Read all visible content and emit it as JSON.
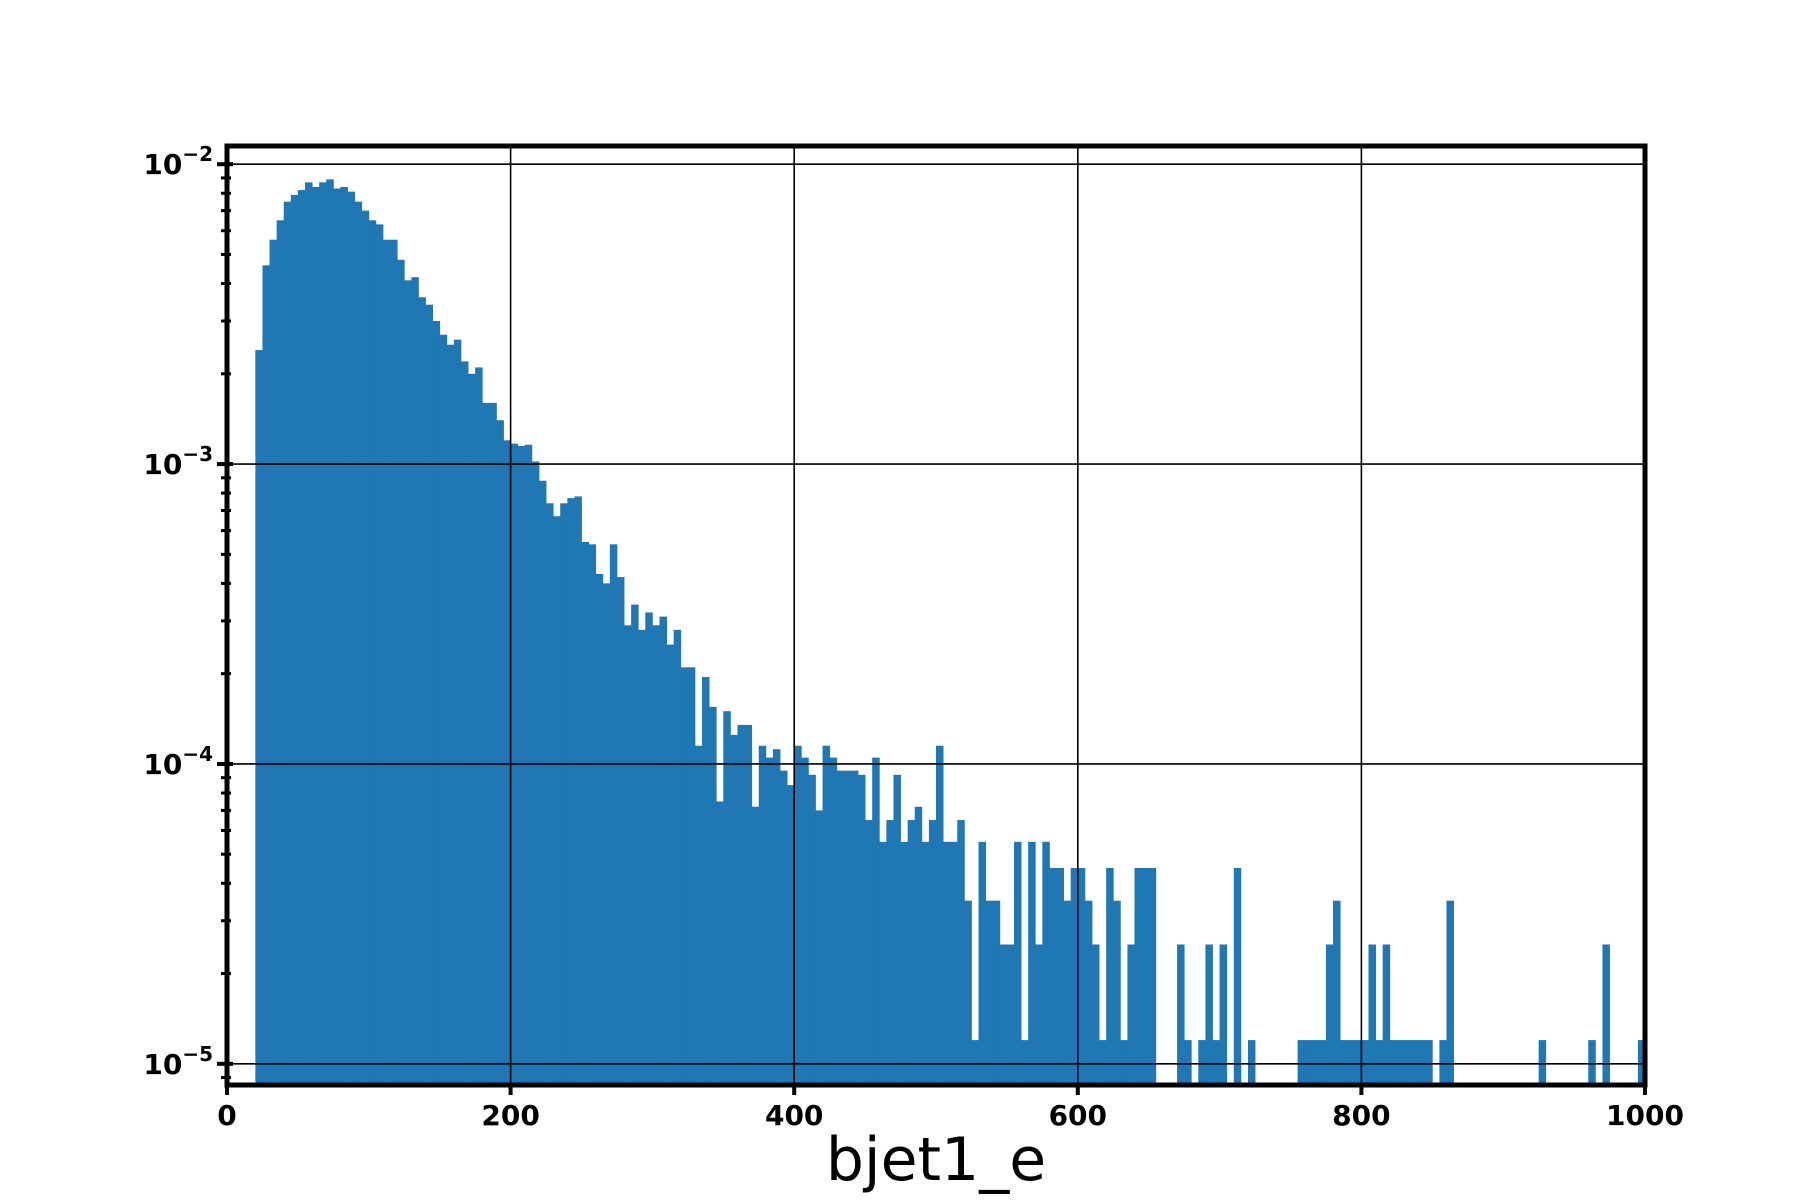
{
  "chart_data": {
    "type": "bar",
    "title": "",
    "xlabel": "bjet1_e",
    "ylabel": "",
    "xlim": [
      0,
      1000
    ],
    "ylim": [
      8.5e-06,
      0.0115
    ],
    "yscale": "log",
    "grid": true,
    "bar_color": "#1f77b4",
    "bin_width": 5,
    "x_ticks": [
      0,
      200,
      400,
      600,
      800,
      1000
    ],
    "x_tick_labels": [
      "0",
      "200",
      "400",
      "600",
      "800",
      "1000"
    ],
    "y_ticks": [
      1e-05,
      0.0001,
      0.001,
      0.01
    ],
    "y_tick_labels": [
      {
        "base": "10",
        "exp": "−5"
      },
      {
        "base": "10",
        "exp": "−4"
      },
      {
        "base": "10",
        "exp": "−3"
      },
      {
        "base": "10",
        "exp": "−2"
      }
    ],
    "series": [
      {
        "x": [
          20,
          25,
          30,
          35,
          40,
          45,
          50,
          55,
          60,
          65,
          70,
          75,
          80,
          85,
          90,
          95,
          100,
          105,
          110,
          115,
          120,
          125,
          130,
          135,
          140,
          145,
          150,
          155,
          160,
          165,
          170,
          175,
          180,
          185,
          190,
          195,
          200,
          205,
          210,
          215,
          220,
          225,
          230,
          235,
          240,
          245,
          250,
          255,
          260,
          265,
          270,
          275,
          280,
          285,
          290,
          295,
          300,
          305,
          310,
          315,
          320,
          325,
          330,
          335,
          340,
          345,
          350,
          355,
          360,
          365,
          370,
          375,
          380,
          385,
          390,
          395,
          400,
          405,
          410,
          415,
          420,
          425,
          430,
          435,
          440,
          445,
          450,
          455,
          460,
          465,
          470,
          475,
          480,
          485,
          490,
          495,
          500,
          505,
          510,
          515,
          520,
          525,
          530,
          535,
          540,
          545,
          550,
          555,
          560,
          565,
          570,
          575,
          580,
          585,
          590,
          595,
          600,
          605,
          610,
          615,
          620,
          625,
          630,
          635,
          640,
          645,
          650,
          670,
          675,
          685,
          690,
          695,
          700,
          710,
          720,
          755,
          760,
          765,
          770,
          775,
          780,
          785,
          790,
          795,
          800,
          805,
          810,
          815,
          820,
          825,
          830,
          835,
          840,
          845,
          855,
          860,
          925,
          960,
          970,
          995
        ],
        "values": [
          0.0024,
          0.0046,
          0.0056,
          0.0065,
          0.0075,
          0.0079,
          0.0082,
          0.0087,
          0.0084,
          0.0087,
          0.0089,
          0.0083,
          0.0084,
          0.0081,
          0.0075,
          0.007,
          0.0065,
          0.0063,
          0.0056,
          0.0056,
          0.0048,
          0.0041,
          0.0042,
          0.0036,
          0.0034,
          0.003,
          0.0027,
          0.0025,
          0.0026,
          0.0022,
          0.002,
          0.0021,
          0.0016,
          0.0016,
          0.0014,
          0.0012,
          0.00117,
          0.00115,
          0.00116,
          0.00102,
          0.00088,
          0.00074,
          0.00067,
          0.00074,
          0.00077,
          0.00078,
          0.00055,
          0.00054,
          0.00043,
          0.0004,
          0.00054,
          0.00042,
          0.00029,
          0.00034,
          0.00028,
          0.00032,
          0.00029,
          0.00031,
          0.00025,
          0.00028,
          0.00021,
          0.00021,
          0.000115,
          0.000195,
          0.000155,
          7.5e-05,
          0.00015,
          0.000125,
          0.000135,
          0.000135,
          7.2e-05,
          0.000115,
          0.000105,
          0.000112,
          9.5e-05,
          8.5e-05,
          0.000115,
          0.000105,
          9.2e-05,
          7e-05,
          0.000115,
          0.000105,
          9.5e-05,
          9.5e-05,
          9.5e-05,
          9.2e-05,
          6.5e-05,
          0.000105,
          5.5e-05,
          6.5e-05,
          9.2e-05,
          5.5e-05,
          6.5e-05,
          7.2e-05,
          5.5e-05,
          6.5e-05,
          0.000115,
          5.5e-05,
          5.5e-05,
          6.5e-05,
          3.5e-05,
          1.2e-05,
          5.5e-05,
          3.5e-05,
          3.5e-05,
          2.5e-05,
          2.5e-05,
          5.5e-05,
          1.2e-05,
          5.5e-05,
          2.5e-05,
          5.5e-05,
          4.5e-05,
          4.5e-05,
          3.5e-05,
          4.5e-05,
          4.5e-05,
          3.5e-05,
          2.5e-05,
          1.2e-05,
          4.5e-05,
          3.5e-05,
          1.2e-05,
          2.5e-05,
          4.5e-05,
          4.5e-05,
          4.5e-05,
          2.5e-05,
          1.2e-05,
          1.2e-05,
          2.5e-05,
          1.2e-05,
          2.5e-05,
          4.5e-05,
          1.2e-05,
          1.2e-05,
          1.2e-05,
          1.2e-05,
          1.2e-05,
          2.5e-05,
          3.5e-05,
          1.2e-05,
          1.2e-05,
          1.2e-05,
          1.2e-05,
          2.5e-05,
          1.2e-05,
          2.5e-05,
          1.2e-05,
          1.2e-05,
          1.2e-05,
          1.2e-05,
          1.2e-05,
          1.2e-05,
          1.2e-05,
          3.5e-05,
          1.2e-05,
          1.2e-05,
          2.5e-05,
          1.2e-05
        ]
      }
    ]
  }
}
